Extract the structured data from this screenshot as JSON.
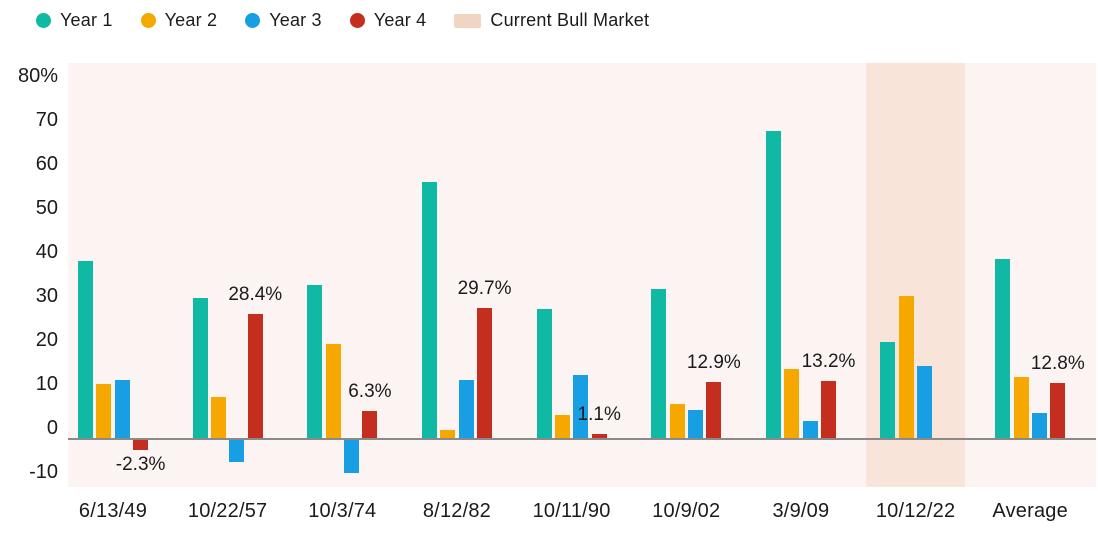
{
  "legend": {
    "items": [
      {
        "label": "Year 1",
        "color": "#0FB9A3",
        "shape": "circle"
      },
      {
        "label": "Year 2",
        "color": "#F7A800",
        "shape": "circle"
      },
      {
        "label": "Year 3",
        "color": "#189FE3",
        "shape": "circle"
      },
      {
        "label": "Year 4",
        "color": "#C32E1F",
        "shape": "circle"
      },
      {
        "label": "Current Bull Market",
        "color": "#F0D5C2",
        "shape": "square"
      }
    ]
  },
  "chart_data": {
    "type": "bar",
    "title": "",
    "categories": [
      "6/13/49",
      "10/22/57",
      "10/3/74",
      "8/12/82",
      "10/11/90",
      "10/9/02",
      "3/9/09",
      "10/12/22",
      "Average"
    ],
    "series": [
      {
        "name": "Year 1",
        "color": "#0FB9A3",
        "values": [
          40.5,
          32,
          35,
          58.5,
          29.5,
          34,
          70,
          22,
          41
        ]
      },
      {
        "name": "Year 2",
        "color": "#F7A800",
        "values": [
          12.5,
          9.5,
          21.5,
          2,
          5.5,
          8,
          16,
          32.5,
          14
        ]
      },
      {
        "name": "Year 3",
        "color": "#189FE3",
        "values": [
          13.5,
          -5,
          -7.5,
          13.5,
          14.5,
          6.5,
          4,
          16.5,
          6
        ]
      },
      {
        "name": "Year 4",
        "color": "#C32E1F",
        "values": [
          -2.3,
          28.4,
          6.3,
          29.7,
          1.1,
          12.9,
          13.2,
          null,
          12.8
        ],
        "labels": [
          "-2.3%",
          "28.4%",
          "6.3%",
          "29.7%",
          "1.1%",
          "12.9%",
          "13.2%",
          null,
          "12.8%"
        ]
      }
    ],
    "y_axis": {
      "min": -10,
      "max": 80,
      "step": 10,
      "tick_values": [
        80,
        70,
        60,
        50,
        40,
        30,
        20,
        10,
        0,
        -10
      ],
      "tick_labels": [
        "80%",
        "70",
        "60",
        "50",
        "40",
        "30",
        "20",
        "10",
        "0",
        "-10"
      ]
    },
    "highlight": {
      "category": "10/12/22",
      "label": "Current Bull Market",
      "color": "#F8E4D8"
    },
    "grid": false,
    "legend_position": "top",
    "plot_background": "#FBF4F2",
    "axis_line_color": "#8A8A8A",
    "xlabel": "",
    "ylabel": ""
  }
}
